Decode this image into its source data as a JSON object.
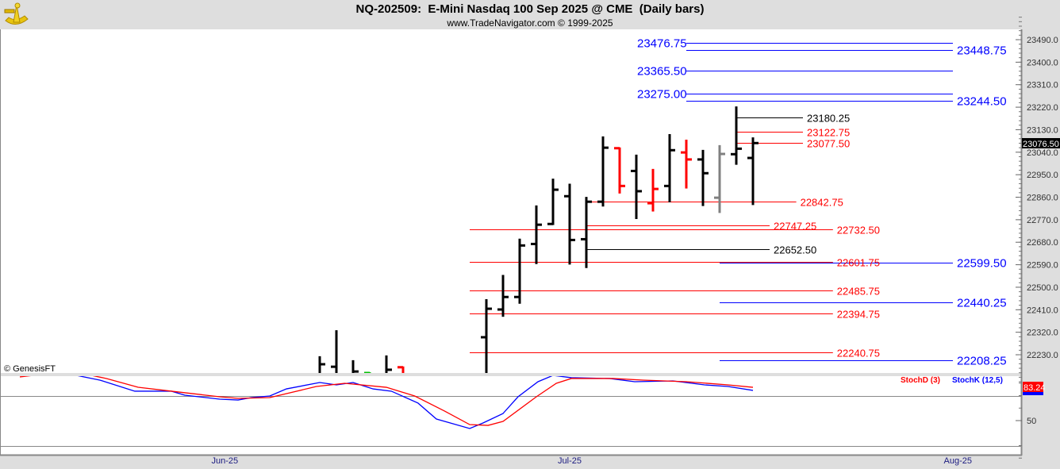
{
  "header": {
    "title": "NQ-202509:  E-Mini Nasdaq 100 Sep 2025 @ CME  (Daily bars)",
    "subtitle": "www.TradeNavigator.com © 1999-2025",
    "logo_icon": "sextant-icon"
  },
  "copyright": "© GenesisFT",
  "chart_data": [
    {
      "type": "ohlc-bar",
      "name": "price",
      "x_unit": "trading day offset from Jul-25",
      "y_axis": {
        "ticks": [
          23490,
          23400,
          23310,
          23220,
          23130,
          23040,
          22950,
          22860,
          22770,
          22680,
          22590,
          22500,
          22410,
          22320,
          22230
        ],
        "range": [
          22110,
          23530
        ]
      },
      "last_price": "23076.50",
      "x_axis": {
        "labels": [
          {
            "label": "Jun-25",
            "day": -20.7
          },
          {
            "label": "Jul-25",
            "day": 0
          },
          {
            "label": "Aug-25",
            "day": 23.3
          }
        ],
        "range": [
          -34.2,
          27.1
        ]
      },
      "colors": {
        "up": "#000000",
        "down": "#ff0000",
        "neutral": "#808080",
        "small": "#00c000"
      },
      "bars": [
        {
          "day": -15,
          "o": 22150,
          "h": 22221,
          "l": 22000,
          "c": 22192,
          "color": "up"
        },
        {
          "day": -14,
          "o": 22182,
          "h": 22325,
          "l": 22000,
          "c": 22100,
          "color": "up"
        },
        {
          "day": -13,
          "o": 22120,
          "h": 22205,
          "l": 22000,
          "c": 22163,
          "color": "up"
        },
        {
          "day": -12,
          "o": 22157,
          "h": 22157,
          "l": 22000,
          "c": 22140,
          "color": "small"
        },
        {
          "day": -11,
          "o": 22130,
          "h": 22224,
          "l": 22000,
          "c": 22170,
          "color": "up"
        },
        {
          "day": -10,
          "o": 22180,
          "h": 22180,
          "l": 22000,
          "c": 22100,
          "color": "down"
        },
        {
          "day": -5,
          "o": 22300,
          "h": 22449,
          "l": 22100,
          "c": 22414,
          "color": "up"
        },
        {
          "day": -4,
          "o": 22411,
          "h": 22546,
          "l": 22385,
          "c": 22461,
          "color": "up"
        },
        {
          "day": -3,
          "o": 22461,
          "h": 22691,
          "l": 22437,
          "c": 22667,
          "color": "up"
        },
        {
          "day": -2,
          "o": 22673,
          "h": 22824,
          "l": 22596,
          "c": 22750,
          "color": "up"
        },
        {
          "day": -1,
          "o": 22753,
          "h": 22931,
          "l": 22752,
          "c": 22890,
          "color": "up"
        },
        {
          "day": 0,
          "o": 22864,
          "h": 22911,
          "l": 22594,
          "c": 22689,
          "color": "up"
        },
        {
          "day": 1,
          "o": 22692,
          "h": 22858,
          "l": 22580,
          "c": 22842,
          "color": "up"
        },
        {
          "day": 2,
          "o": 22842,
          "h": 23100,
          "l": 22826,
          "c": 23058,
          "color": "up"
        },
        {
          "day": 3,
          "o": 23056,
          "h": 23056,
          "l": 22878,
          "c": 22905,
          "color": "down"
        },
        {
          "day": 4,
          "o": 22965,
          "h": 23027,
          "l": 22776,
          "c": 22884,
          "color": "up"
        },
        {
          "day": 5,
          "o": 22836,
          "h": 22970,
          "l": 22806,
          "c": 22893,
          "color": "down"
        },
        {
          "day": 6,
          "o": 22905,
          "h": 23109,
          "l": 22843,
          "c": 23048,
          "color": "up"
        },
        {
          "day": 7,
          "o": 23039,
          "h": 23087,
          "l": 22898,
          "c": 23011,
          "color": "down"
        },
        {
          "day": 8,
          "o": 23011,
          "h": 23046,
          "l": 22828,
          "c": 22956,
          "color": "up"
        },
        {
          "day": 9,
          "o": 22858,
          "h": 23065,
          "l": 22800,
          "c": 23033,
          "color": "neutral"
        },
        {
          "day": 10,
          "o": 23032,
          "h": 23220,
          "l": 22993,
          "c": 23054,
          "color": "up"
        },
        {
          "day": 11,
          "o": 23017,
          "h": 23096,
          "l": 22832,
          "c": 23076.5,
          "color": "up"
        }
      ],
      "levels": [
        {
          "label": "23476.75",
          "price": 23476.75,
          "from": 7,
          "to": 23,
          "color": "#0000ff",
          "side": "left",
          "big": true
        },
        {
          "label": "23448.75",
          "price": 23448.75,
          "from": 7,
          "to": 23,
          "color": "#0000ff",
          "side": "right",
          "big": true
        },
        {
          "label": "23365.50",
          "price": 23365.5,
          "from": 7,
          "to": 23,
          "color": "#0000ff",
          "side": "left",
          "big": true
        },
        {
          "label": "23275.00",
          "price": 23275.0,
          "from": 7,
          "to": 23,
          "color": "#0000ff",
          "side": "left",
          "big": true
        },
        {
          "label": "23244.50",
          "price": 23244.5,
          "from": 7,
          "to": 23,
          "color": "#0000ff",
          "side": "right",
          "big": true
        },
        {
          "label": "22599.50",
          "price": 22599.5,
          "from": 9,
          "to": 23,
          "color": "#0000ff",
          "side": "right",
          "big": true
        },
        {
          "label": "22440.25",
          "price": 22440.25,
          "from": 9,
          "to": 23,
          "color": "#0000ff",
          "side": "right",
          "big": true
        },
        {
          "label": "22208.25",
          "price": 22208.25,
          "from": 9,
          "to": 23,
          "color": "#0000ff",
          "side": "right",
          "big": true
        },
        {
          "label": "23180.25",
          "price": 23180.25,
          "from": 10,
          "to": 14,
          "color": "#000000",
          "side": "right",
          "big": false
        },
        {
          "label": "23122.75",
          "price": 23122.75,
          "from": 10,
          "to": 14,
          "color": "#ff0000",
          "side": "right",
          "big": false
        },
        {
          "label": "23077.50",
          "price": 23077.5,
          "from": 10,
          "to": 14,
          "color": "#ff0000",
          "side": "right",
          "big": false
        },
        {
          "label": "22842.75",
          "price": 22842.75,
          "from": 1,
          "to": 13.6,
          "color": "#ff0000",
          "side": "right",
          "big": false
        },
        {
          "label": "22747.25",
          "price": 22747.25,
          "from": 1,
          "to": 12,
          "color": "#ff0000",
          "side": "right",
          "big": false
        },
        {
          "label": "22732.50",
          "price": 22732.5,
          "from": -6,
          "to": 15.8,
          "color": "#ff0000",
          "side": "right",
          "big": false
        },
        {
          "label": "22652.50",
          "price": 22652.5,
          "from": 1,
          "to": 12,
          "color": "#000000",
          "side": "right",
          "big": false
        },
        {
          "label": "22601.75",
          "price": 22601.75,
          "from": -6,
          "to": 15.8,
          "color": "#ff0000",
          "side": "right",
          "big": false
        },
        {
          "label": "22485.75",
          "price": 22485.75,
          "from": -6,
          "to": 15.8,
          "color": "#ff0000",
          "side": "right",
          "big": false
        },
        {
          "label": "22394.75",
          "price": 22394.75,
          "from": -6,
          "to": 15.8,
          "color": "#ff0000",
          "side": "right",
          "big": false
        },
        {
          "label": "22240.75",
          "price": 22240.75,
          "from": -6,
          "to": 15.8,
          "color": "#ff0000",
          "side": "right",
          "big": false
        }
      ]
    },
    {
      "type": "line",
      "name": "stochastic",
      "y_axis": {
        "ticks": [
          50
        ],
        "range": [
          0,
          100
        ],
        "guides": [
          75,
          25
        ]
      },
      "legend": [
        {
          "label": "StochD (3)",
          "color": "#ff0000"
        },
        {
          "label": "StochK (12,5)",
          "color": "#0000ff"
        }
      ],
      "legend_placement": "top-right",
      "last_value": "83.24",
      "series": [
        {
          "name": "StochK (12,5)",
          "color": "#0000ff",
          "points": [
            [
              -33,
              95.2
            ],
            [
              -29.6,
              95.2
            ],
            [
              -28.2,
              90.5
            ],
            [
              -26.1,
              79.4
            ],
            [
              -23.9,
              79.4
            ],
            [
              -23.1,
              75.4
            ],
            [
              -21,
              71.4
            ],
            [
              -19.9,
              70.6
            ],
            [
              -19.1,
              73
            ],
            [
              -18,
              74.6
            ],
            [
              -17,
              81.7
            ],
            [
              -15,
              88.1
            ],
            [
              -14,
              85.7
            ],
            [
              -13,
              88.1
            ],
            [
              -11.8,
              81.7
            ],
            [
              -10.7,
              79.4
            ],
            [
              -9.1,
              67.5
            ],
            [
              -8,
              51.6
            ],
            [
              -6,
              42.1
            ],
            [
              -5.2,
              47.6
            ],
            [
              -4,
              57.1
            ],
            [
              -3.1,
              73.8
            ],
            [
              -1.9,
              88.9
            ],
            [
              -1,
              95.2
            ],
            [
              0.1,
              92.9
            ],
            [
              2.4,
              92.1
            ],
            [
              3.9,
              88.9
            ],
            [
              6.2,
              89.7
            ],
            [
              8.1,
              85.7
            ],
            [
              9.5,
              84.1
            ],
            [
              11,
              80.2
            ]
          ]
        },
        {
          "name": "StochD (3)",
          "color": "#ff0000",
          "points": [
            [
              -33,
              93.7
            ],
            [
              -32.2,
              95.2
            ],
            [
              -28.7,
              95.2
            ],
            [
              -27.8,
              92.1
            ],
            [
              -25.9,
              83.3
            ],
            [
              -23.9,
              79.4
            ],
            [
              -21,
              73.8
            ],
            [
              -19.9,
              72.2
            ],
            [
              -18,
              73
            ],
            [
              -15.2,
              84.1
            ],
            [
              -13.5,
              87.3
            ],
            [
              -11,
              83.3
            ],
            [
              -9.3,
              74.6
            ],
            [
              -7.5,
              59.5
            ],
            [
              -6,
              46
            ],
            [
              -4.9,
              45.2
            ],
            [
              -4,
              49.2
            ],
            [
              -2,
              73.8
            ],
            [
              -0.8,
              87.3
            ],
            [
              0.1,
              92.1
            ],
            [
              2.6,
              92.1
            ],
            [
              4.4,
              90.5
            ],
            [
              7,
              88.9
            ],
            [
              9.5,
              85.7
            ],
            [
              11,
              83.3
            ]
          ]
        }
      ]
    }
  ]
}
